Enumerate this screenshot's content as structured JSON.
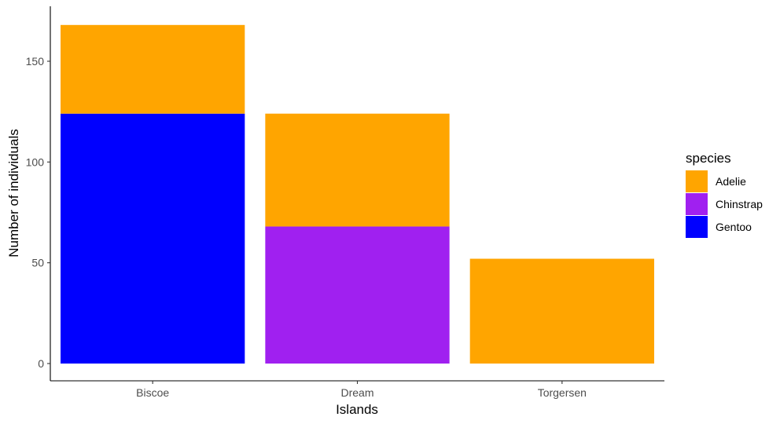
{
  "chart_data": {
    "type": "bar",
    "stacked": true,
    "categories": [
      "Biscoe",
      "Dream",
      "Torgersen"
    ],
    "series": [
      {
        "name": "Gentoo",
        "color": "#0000ff",
        "values": [
          124,
          0,
          0
        ]
      },
      {
        "name": "Chinstrap",
        "color": "#a020f0",
        "values": [
          0,
          68,
          0
        ]
      },
      {
        "name": "Adelie",
        "color": "#ffa500",
        "values": [
          44,
          56,
          52
        ]
      }
    ],
    "stack_order_bottom_to_top": [
      "Gentoo",
      "Chinstrap",
      "Adelie"
    ],
    "xlabel": "Islands",
    "ylabel": "Number of individuals",
    "ylim": [
      0,
      175
    ],
    "yticks": [
      0,
      50,
      100,
      150
    ],
    "grid": false,
    "legend": {
      "title": "species",
      "position": "right",
      "items": [
        {
          "label": "Adelie",
          "color": "#ffa500"
        },
        {
          "label": "Chinstrap",
          "color": "#a020f0"
        },
        {
          "label": "Gentoo",
          "color": "#0000ff"
        }
      ]
    }
  }
}
